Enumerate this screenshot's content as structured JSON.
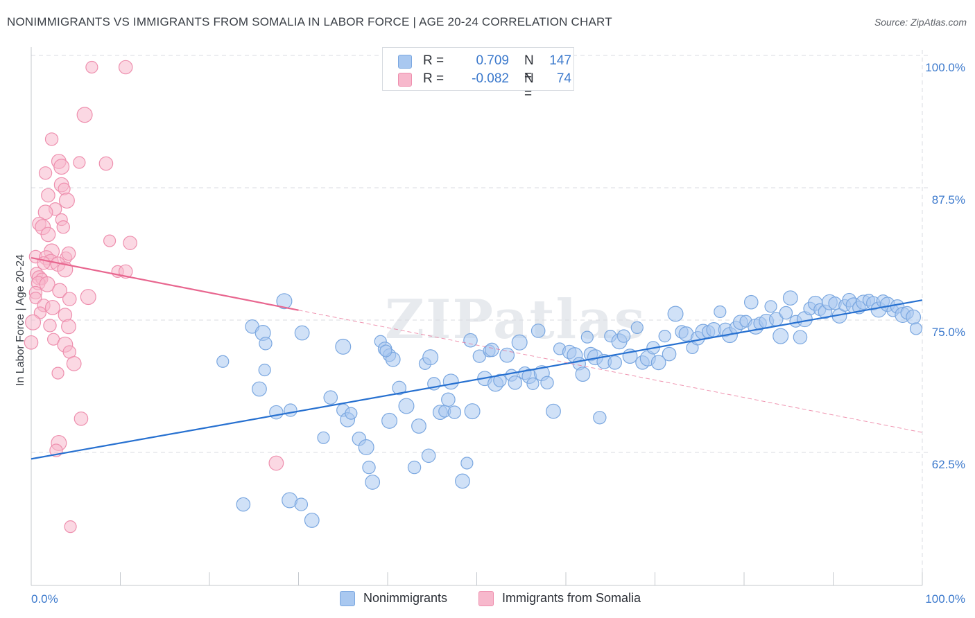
{
  "title": "NONIMMIGRANTS VS IMMIGRANTS FROM SOMALIA IN LABOR FORCE | AGE 20-24 CORRELATION CHART",
  "source": "Source: ZipAtlas.com",
  "watermark": "ZIPatlas",
  "legend": {
    "rows": [
      {
        "r_label": "R =",
        "r_value": "0.709",
        "n_label": "N =",
        "n_value": "147"
      },
      {
        "r_label": "R =",
        "r_value": "-0.082",
        "n_label": "N =",
        "n_value": "74"
      }
    ]
  },
  "bottom_legend": [
    "Nonimmigrants",
    "Immigrants from Somalia"
  ],
  "colors": {
    "blue_fill": "#a9c8f0",
    "blue_stroke": "#7aa7e0",
    "blue_line": "#2670d0",
    "pink_fill": "#f7b8cc",
    "pink_stroke": "#ee8fae",
    "pink_line": "#e8668f",
    "axis_text": "#3a78cc",
    "grid": "#d8dbe0"
  },
  "chart_data": {
    "type": "scatter",
    "title": "NONIMMIGRANTS VS IMMIGRANTS FROM SOMALIA IN LABOR FORCE | AGE 20-24 CORRELATION CHART",
    "xlabel": "",
    "ylabel": "In Labor Force | Age 20-24",
    "xlim": [
      0,
      100
    ],
    "ylim": [
      50,
      102.5
    ],
    "x_tick_labels": [
      "0.0%",
      "100.0%"
    ],
    "y_ticks": [
      62.5,
      75.0,
      87.5,
      100.0
    ],
    "y_tick_labels": [
      "62.5%",
      "75.0%",
      "87.5%",
      "100.0%"
    ],
    "series": [
      {
        "name": "Nonimmigrants",
        "r": 0.709,
        "n": 147,
        "trend": {
          "x": [
            0,
            100
          ],
          "y": [
            63.0,
            78.0
          ],
          "dashed_from": null
        },
        "points": [
          [
            21.5,
            72.2
          ],
          [
            24.8,
            75.5
          ],
          [
            26.0,
            74.9
          ],
          [
            26.3,
            73.9
          ],
          [
            25.6,
            69.6
          ],
          [
            26.2,
            71.4
          ],
          [
            27.5,
            67.4
          ],
          [
            28.4,
            77.9
          ],
          [
            29.1,
            67.6
          ],
          [
            30.4,
            74.9
          ],
          [
            32.8,
            65.0
          ],
          [
            33.6,
            68.8
          ],
          [
            35.0,
            73.6
          ],
          [
            35.0,
            67.6
          ],
          [
            35.5,
            66.7
          ],
          [
            35.9,
            67.3
          ],
          [
            36.8,
            64.9
          ],
          [
            37.6,
            64.1
          ],
          [
            37.9,
            62.2
          ],
          [
            38.3,
            60.8
          ],
          [
            39.2,
            74.1
          ],
          [
            39.7,
            73.4
          ],
          [
            40.2,
            66.6
          ],
          [
            40.2,
            72.8
          ],
          [
            40.6,
            72.4
          ],
          [
            39.8,
            73.2
          ],
          [
            41.3,
            69.7
          ],
          [
            42.1,
            68.0
          ],
          [
            43.0,
            62.2
          ],
          [
            43.5,
            66.1
          ],
          [
            44.2,
            72.0
          ],
          [
            44.6,
            63.3
          ],
          [
            44.8,
            72.6
          ],
          [
            45.2,
            70.1
          ],
          [
            45.9,
            67.4
          ],
          [
            46.4,
            67.5
          ],
          [
            46.8,
            68.6
          ],
          [
            47.1,
            70.3
          ],
          [
            47.5,
            67.4
          ],
          [
            48.4,
            60.9
          ],
          [
            48.9,
            62.6
          ],
          [
            49.3,
            74.2
          ],
          [
            49.5,
            67.5
          ],
          [
            50.3,
            72.7
          ],
          [
            50.9,
            70.6
          ],
          [
            51.4,
            73.2
          ],
          [
            51.7,
            73.3
          ],
          [
            52.1,
            70.1
          ],
          [
            52.6,
            70.4
          ],
          [
            53.4,
            72.8
          ],
          [
            53.9,
            70.9
          ],
          [
            54.3,
            70.2
          ],
          [
            54.8,
            74.0
          ],
          [
            55.4,
            71.1
          ],
          [
            55.9,
            70.8
          ],
          [
            56.3,
            70.1
          ],
          [
            56.9,
            75.1
          ],
          [
            57.3,
            71.1
          ],
          [
            57.9,
            70.2
          ],
          [
            58.6,
            67.5
          ],
          [
            59.3,
            73.4
          ],
          [
            60.4,
            73.1
          ],
          [
            61.0,
            72.8
          ],
          [
            61.5,
            72.0
          ],
          [
            61.9,
            71.0
          ],
          [
            62.4,
            74.5
          ],
          [
            62.8,
            72.9
          ],
          [
            63.3,
            72.6
          ],
          [
            63.8,
            66.9
          ],
          [
            64.3,
            72.2
          ],
          [
            65.0,
            74.6
          ],
          [
            65.5,
            72.1
          ],
          [
            66.0,
            74.1
          ],
          [
            66.5,
            74.6
          ],
          [
            67.2,
            72.7
          ],
          [
            68.0,
            75.4
          ],
          [
            68.6,
            72.1
          ],
          [
            69.2,
            72.5
          ],
          [
            69.8,
            73.5
          ],
          [
            70.4,
            72.1
          ],
          [
            71.1,
            74.6
          ],
          [
            71.6,
            72.9
          ],
          [
            72.3,
            76.7
          ],
          [
            73.0,
            75.0
          ],
          [
            73.5,
            74.8
          ],
          [
            74.2,
            73.5
          ],
          [
            74.8,
            74.4
          ],
          [
            75.4,
            75.0
          ],
          [
            76.0,
            75.0
          ],
          [
            76.6,
            75.2
          ],
          [
            77.3,
            76.9
          ],
          [
            77.9,
            75.2
          ],
          [
            78.4,
            74.7
          ],
          [
            79.1,
            75.4
          ],
          [
            79.6,
            75.9
          ],
          [
            80.2,
            76.0
          ],
          [
            80.8,
            77.8
          ],
          [
            81.3,
            75.5
          ],
          [
            81.8,
            75.8
          ],
          [
            82.5,
            76.0
          ],
          [
            83.0,
            77.4
          ],
          [
            83.6,
            76.2
          ],
          [
            84.1,
            74.6
          ],
          [
            84.7,
            76.8
          ],
          [
            85.2,
            78.2
          ],
          [
            85.8,
            76.0
          ],
          [
            86.3,
            74.5
          ],
          [
            86.8,
            76.2
          ],
          [
            87.4,
            77.2
          ],
          [
            88.0,
            77.7
          ],
          [
            88.5,
            77.1
          ],
          [
            89.1,
            76.9
          ],
          [
            89.6,
            77.8
          ],
          [
            90.2,
            77.7
          ],
          [
            90.7,
            76.5
          ],
          [
            91.3,
            77.5
          ],
          [
            91.8,
            78.0
          ],
          [
            92.3,
            77.5
          ],
          [
            92.9,
            77.3
          ],
          [
            93.4,
            77.8
          ],
          [
            94.0,
            78.0
          ],
          [
            94.5,
            77.7
          ],
          [
            95.1,
            77.1
          ],
          [
            95.6,
            77.9
          ],
          [
            96.1,
            77.6
          ],
          [
            96.7,
            77.0
          ],
          [
            97.2,
            77.4
          ],
          [
            97.8,
            76.6
          ],
          [
            98.3,
            76.8
          ],
          [
            99.0,
            76.4
          ],
          [
            99.3,
            75.3
          ],
          [
            23.8,
            58.7
          ],
          [
            29.0,
            59.1
          ],
          [
            30.3,
            58.7
          ],
          [
            31.5,
            57.2
          ]
        ]
      },
      {
        "name": "Immigrants from Somalia",
        "r": -0.082,
        "n": 74,
        "trend": {
          "x": [
            0,
            100
          ],
          "y": [
            82.0,
            65.5
          ],
          "dashed_from": 30
        },
        "points": [
          [
            6.8,
            100.0
          ],
          [
            10.6,
            100.0
          ],
          [
            6.0,
            95.5
          ],
          [
            2.3,
            93.2
          ],
          [
            3.1,
            91.1
          ],
          [
            5.4,
            91.0
          ],
          [
            8.4,
            90.9
          ],
          [
            3.4,
            90.6
          ],
          [
            1.6,
            90.0
          ],
          [
            3.4,
            88.9
          ],
          [
            3.7,
            88.5
          ],
          [
            1.9,
            87.9
          ],
          [
            4.0,
            87.4
          ],
          [
            2.7,
            86.6
          ],
          [
            1.6,
            86.3
          ],
          [
            3.4,
            85.6
          ],
          [
            0.9,
            85.2
          ],
          [
            1.3,
            84.9
          ],
          [
            3.6,
            84.9
          ],
          [
            1.9,
            84.2
          ],
          [
            8.8,
            83.6
          ],
          [
            11.1,
            83.4
          ],
          [
            2.3,
            82.6
          ],
          [
            0.5,
            82.1
          ],
          [
            1.7,
            82.0
          ],
          [
            3.9,
            82.0
          ],
          [
            4.2,
            82.4
          ],
          [
            2.2,
            81.6
          ],
          [
            1.4,
            81.5
          ],
          [
            3.0,
            81.4
          ],
          [
            9.7,
            80.7
          ],
          [
            10.6,
            80.7
          ],
          [
            3.8,
            80.9
          ],
          [
            0.6,
            80.5
          ],
          [
            0.9,
            80.1
          ],
          [
            1.2,
            80.0
          ],
          [
            0.8,
            79.6
          ],
          [
            1.8,
            79.5
          ],
          [
            0.5,
            78.7
          ],
          [
            3.2,
            78.9
          ],
          [
            0.5,
            78.2
          ],
          [
            4.3,
            78.1
          ],
          [
            6.4,
            78.3
          ],
          [
            1.4,
            77.5
          ],
          [
            2.4,
            77.3
          ],
          [
            1.0,
            76.8
          ],
          [
            3.8,
            76.6
          ],
          [
            0.2,
            75.9
          ],
          [
            2.1,
            75.6
          ],
          [
            4.2,
            75.5
          ],
          [
            2.5,
            74.3
          ],
          [
            0.0,
            74.0
          ],
          [
            3.8,
            73.8
          ],
          [
            4.3,
            73.1
          ],
          [
            4.8,
            72.0
          ],
          [
            3.0,
            71.1
          ],
          [
            5.6,
            66.8
          ],
          [
            3.1,
            64.5
          ],
          [
            2.8,
            63.8
          ],
          [
            27.5,
            62.6
          ],
          [
            4.4,
            56.6
          ]
        ]
      }
    ]
  }
}
